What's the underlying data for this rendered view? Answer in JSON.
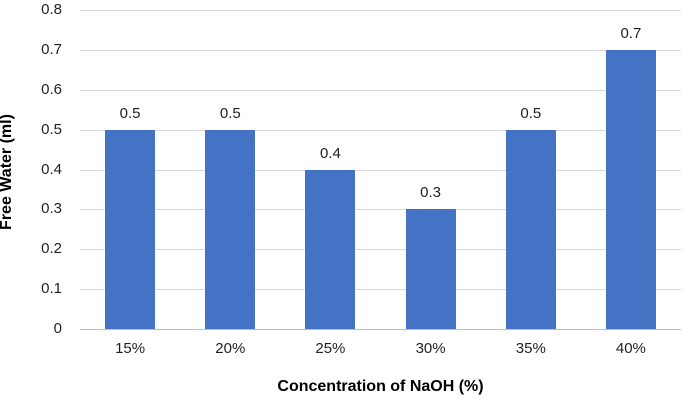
{
  "chart_data": {
    "type": "bar",
    "title": "",
    "xlabel": "Concentration of NaOH (%)",
    "ylabel": "Free Water (ml)",
    "categories": [
      "15%",
      "20%",
      "25%",
      "30%",
      "35%",
      "40%"
    ],
    "values": [
      0.5,
      0.5,
      0.4,
      0.3,
      0.5,
      0.7
    ],
    "data_labels": [
      "0.5",
      "0.5",
      "0.4",
      "0.3",
      "0.5",
      "0.7"
    ],
    "ylim": [
      0,
      0.8
    ],
    "ytick_values": [
      0,
      0.1,
      0.2,
      0.3,
      0.4,
      0.5,
      0.6,
      0.7,
      0.8
    ],
    "ytick_labels": [
      "0",
      "0.1",
      "0.2",
      "0.3",
      "0.4",
      "0.5",
      "0.6",
      "0.7",
      "0.8"
    ],
    "grid": "horizontal-major",
    "legend": "none",
    "colors": {
      "bar": "#4472C4",
      "gridline": "#D9D9D9",
      "axis_line": "#BFBFBF",
      "tick_text": "#1f1f1f",
      "title_text": "#000000",
      "background": "#FFFFFF"
    }
  }
}
